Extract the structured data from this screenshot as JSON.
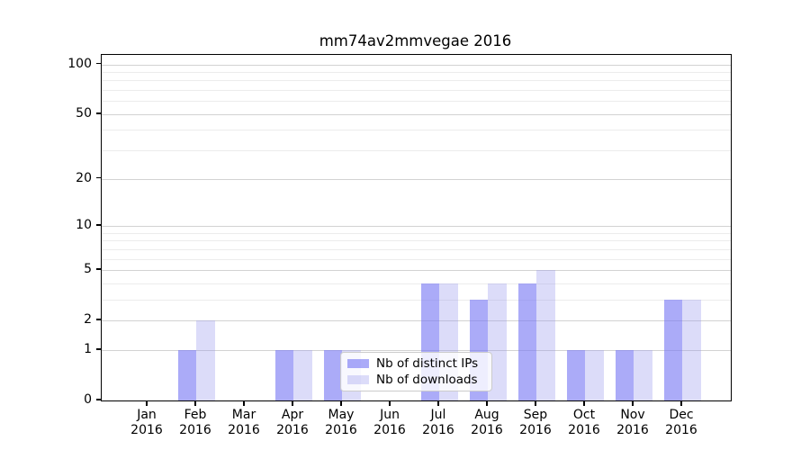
{
  "figure": {
    "title": "mm74av2mmvegae 2016"
  },
  "legend": {
    "items": [
      {
        "label": "Nb of distinct IPs"
      },
      {
        "label": "Nb of downloads"
      }
    ]
  },
  "chart_data": {
    "type": "bar",
    "title": "mm74av2mmvegae 2016",
    "categories": [
      "Jan 2016",
      "Feb 2016",
      "Mar 2016",
      "Apr 2016",
      "May 2016",
      "Jun 2016",
      "Jul 2016",
      "Aug 2016",
      "Sep 2016",
      "Oct 2016",
      "Nov 2016",
      "Dec 2016"
    ],
    "x_tick_line1": [
      "Jan",
      "Feb",
      "Mar",
      "Apr",
      "May",
      "Jun",
      "Jul",
      "Aug",
      "Sep",
      "Oct",
      "Nov",
      "Dec"
    ],
    "x_tick_line2": [
      "2016",
      "2016",
      "2016",
      "2016",
      "2016",
      "2016",
      "2016",
      "2016",
      "2016",
      "2016",
      "2016",
      "2016"
    ],
    "series": [
      {
        "name": "Nb of distinct IPs",
        "values": [
          0,
          1,
          0,
          1,
          1,
          0,
          4,
          3,
          4,
          1,
          1,
          3
        ],
        "color": "rgba(119,119,244,0.62)",
        "solid_color": "#ababf8"
      },
      {
        "name": "Nb of downloads",
        "values": [
          0,
          2,
          0,
          1,
          1,
          0,
          4,
          4,
          5,
          1,
          1,
          3
        ],
        "color": "rgba(155,155,238,0.35)",
        "solid_color": "#dcdcf9"
      }
    ],
    "xlabel": "",
    "ylabel": "",
    "y_scale": "log1p",
    "ylim": [
      0,
      114
    ],
    "y_ticks": [
      0,
      1,
      2,
      5,
      10,
      20,
      50,
      100
    ],
    "y_minor_gridlines": [
      3,
      4,
      6,
      7,
      8,
      9,
      30,
      40,
      60,
      70,
      80,
      90
    ],
    "grid": "horizontal",
    "legend_position": "lower right of plot",
    "colors": {
      "major_grid": "#d2d2d2",
      "minor_grid": "#ececec",
      "axis": "#000000",
      "text": "#000000",
      "background": "#ffffff"
    }
  }
}
